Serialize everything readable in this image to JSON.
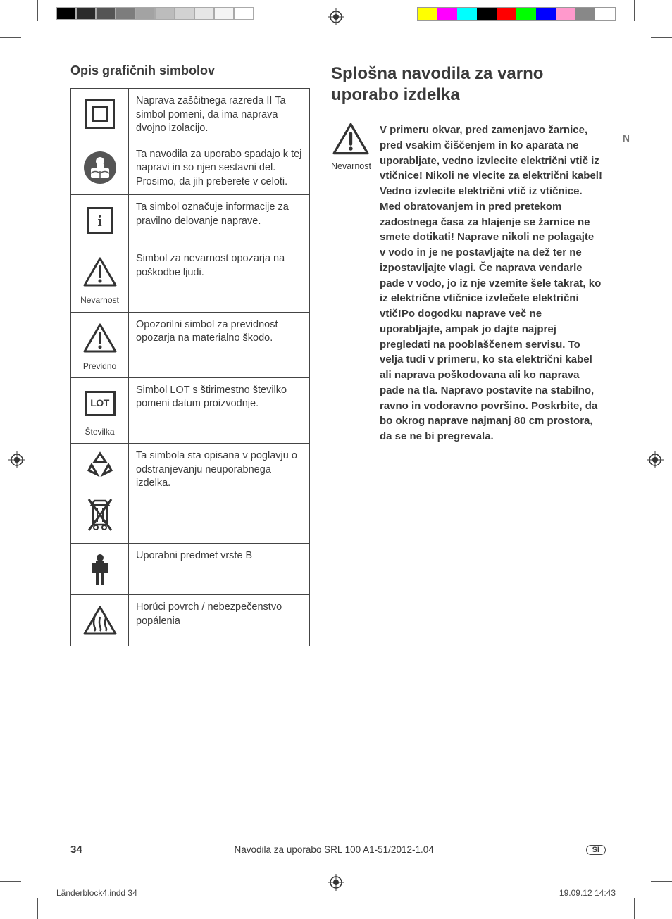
{
  "title_left": "Opis grafičnih simbolov",
  "title_right": "Splošna navodila za varno uporabo izdelka",
  "margin_letter": "N",
  "danger_caption": "Nevarnost",
  "danger_text": "V primeru okvar, pred zamenjavo žarnice, pred vsakim čiščenjem in ko aparata ne uporabljate, vedno izvlecite električni vtič iz vtičnice! Nikoli ne vlecite za električni kabel! Vedno izvlecite električni vtič iz vtičnice. Med obratovanjem in pred pretekom zadostnega časa za hlajenje se žarnice ne smete dotikati! Naprave nikoli ne polagajte v vodo in je ne postavljajte na dež ter ne izpostavljajte vlagi. Če naprava vendarle pade v vodo, jo iz nje vzemite šele takrat, ko iz električne vtičnice izvlečete električni vtič!Po dogodku naprave več ne uporabljajte, ampak jo dajte najprej pregledati na pooblaščenem servisu. To velja tudi v primeru, ko sta električni kabel ali naprava poškodovana ali ko naprava pade na tla. Napravo postavite na stabilno, ravno in vodoravno površino. Poskrbite, da bo okrog naprave najmanj 80 cm prostora, da se ne bi pregrevala.",
  "rows": {
    "r0": {
      "caption": "",
      "desc": "Naprava zaščitnega razreda II Ta simbol pomeni, da ima naprava dvojno izolacijo."
    },
    "r1": {
      "caption": "",
      "desc": "Ta navodila za uporabo spadajo k tej napravi in so njen sestavni del. Prosimo, da jih preberete v celoti."
    },
    "r2": {
      "caption": "",
      "glyph": "i",
      "desc": "Ta simbol označuje informacije za pravilno delovanje naprave."
    },
    "r3": {
      "caption": "Nevarnost",
      "desc": "Simbol za nevarnost opozarja na poškodbe ljudi."
    },
    "r4": {
      "caption": "Previdno",
      "desc": "Opozorilni simbol za previdnost opozarja na materialno škodo."
    },
    "r5": {
      "caption": "Številka",
      "glyph": "LOT",
      "desc": "Simbol LOT s štirimestno številko pomeni datum proizvodnje."
    },
    "r6": {
      "caption": "",
      "desc": "Ta simbola sta opisana v poglavju o odstranjevanju neuporabnega izdelka."
    },
    "r7": {
      "caption": "",
      "desc": "Uporabni predmet vrste B"
    },
    "r8": {
      "caption": "",
      "desc": "Horúci povrch / nebezpečenstvo popálenia"
    }
  },
  "footer": {
    "page": "34",
    "center": "Navodila za uporabo SRL 100 A1-51/2012-1.04",
    "lang": "SI"
  },
  "slug": {
    "file": "Länderblock4.indd   34",
    "datetime": "19.09.12   14:43"
  },
  "colors": {
    "gray_steps": [
      "#000000",
      "#2b2b2b",
      "#555555",
      "#7d7d7d",
      "#a3a3a3",
      "#bcbcbc",
      "#d2d2d2",
      "#e6e6e6",
      "#f4f4f4",
      "#ffffff"
    ],
    "cmyk": [
      "#ffff00",
      "#ff00ff",
      "#00ffff",
      "#000000",
      "#ff0000",
      "#00ff00",
      "#0000ff",
      "#ff99cc",
      "#888888",
      "#ffffff"
    ]
  }
}
